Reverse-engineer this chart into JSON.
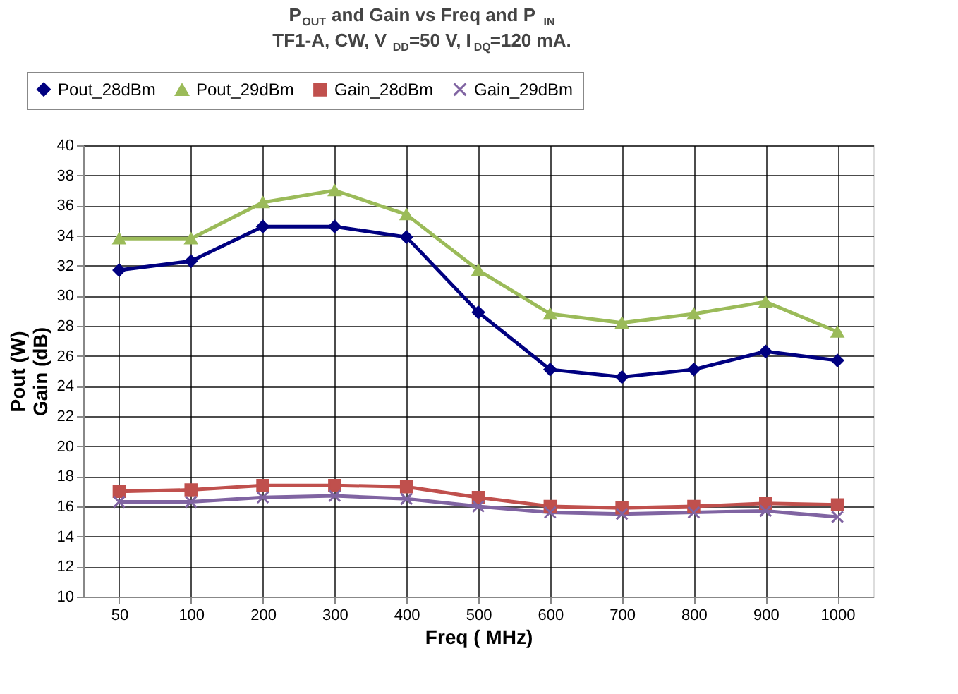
{
  "chart_data": {
    "type": "line",
    "title": "P$_{OUT}$ and Gain vs Freq and P$_{IN}$",
    "subtitle": "TF1-A, CW, V$_{DD}$=50 V, I$_{DQ}$=120 mA.",
    "xlabel": "Freq ( MHz)",
    "ylabel": "Pout (W)\nGain (dB)",
    "categories": [
      "50",
      "100",
      "200",
      "300",
      "400",
      "500",
      "600",
      "700",
      "800",
      "900",
      "1000"
    ],
    "series": [
      {
        "name": "Pout_28dBm",
        "color": "#000080",
        "marker": "diamond",
        "values": [
          31.7,
          32.3,
          34.6,
          34.6,
          33.9,
          28.9,
          25.1,
          24.6,
          25.1,
          26.3,
          25.7
        ]
      },
      {
        "name": "Pout_29dBm",
        "color": "#9bbb59",
        "marker": "triangle",
        "values": [
          33.8,
          33.8,
          36.2,
          37.0,
          35.4,
          31.7,
          28.8,
          28.2,
          28.8,
          29.6,
          27.6
        ]
      },
      {
        "name": "Gain_28dBm",
        "color": "#c0504d",
        "marker": "square",
        "values": [
          17.0,
          17.1,
          17.4,
          17.4,
          17.3,
          16.6,
          16.0,
          15.9,
          16.0,
          16.2,
          16.1
        ]
      },
      {
        "name": "Gain_29dBm",
        "color": "#8064a2",
        "marker": "cross",
        "values": [
          16.3,
          16.3,
          16.6,
          16.7,
          16.5,
          16.0,
          15.6,
          15.5,
          15.6,
          15.7,
          15.3
        ]
      }
    ],
    "ylim": [
      10,
      40
    ],
    "yticks": [
      10,
      12,
      14,
      16,
      18,
      20,
      22,
      24,
      26,
      28,
      30,
      32,
      34,
      36,
      38,
      40
    ],
    "grid": true,
    "legend": "top",
    "line_style": "solid"
  }
}
